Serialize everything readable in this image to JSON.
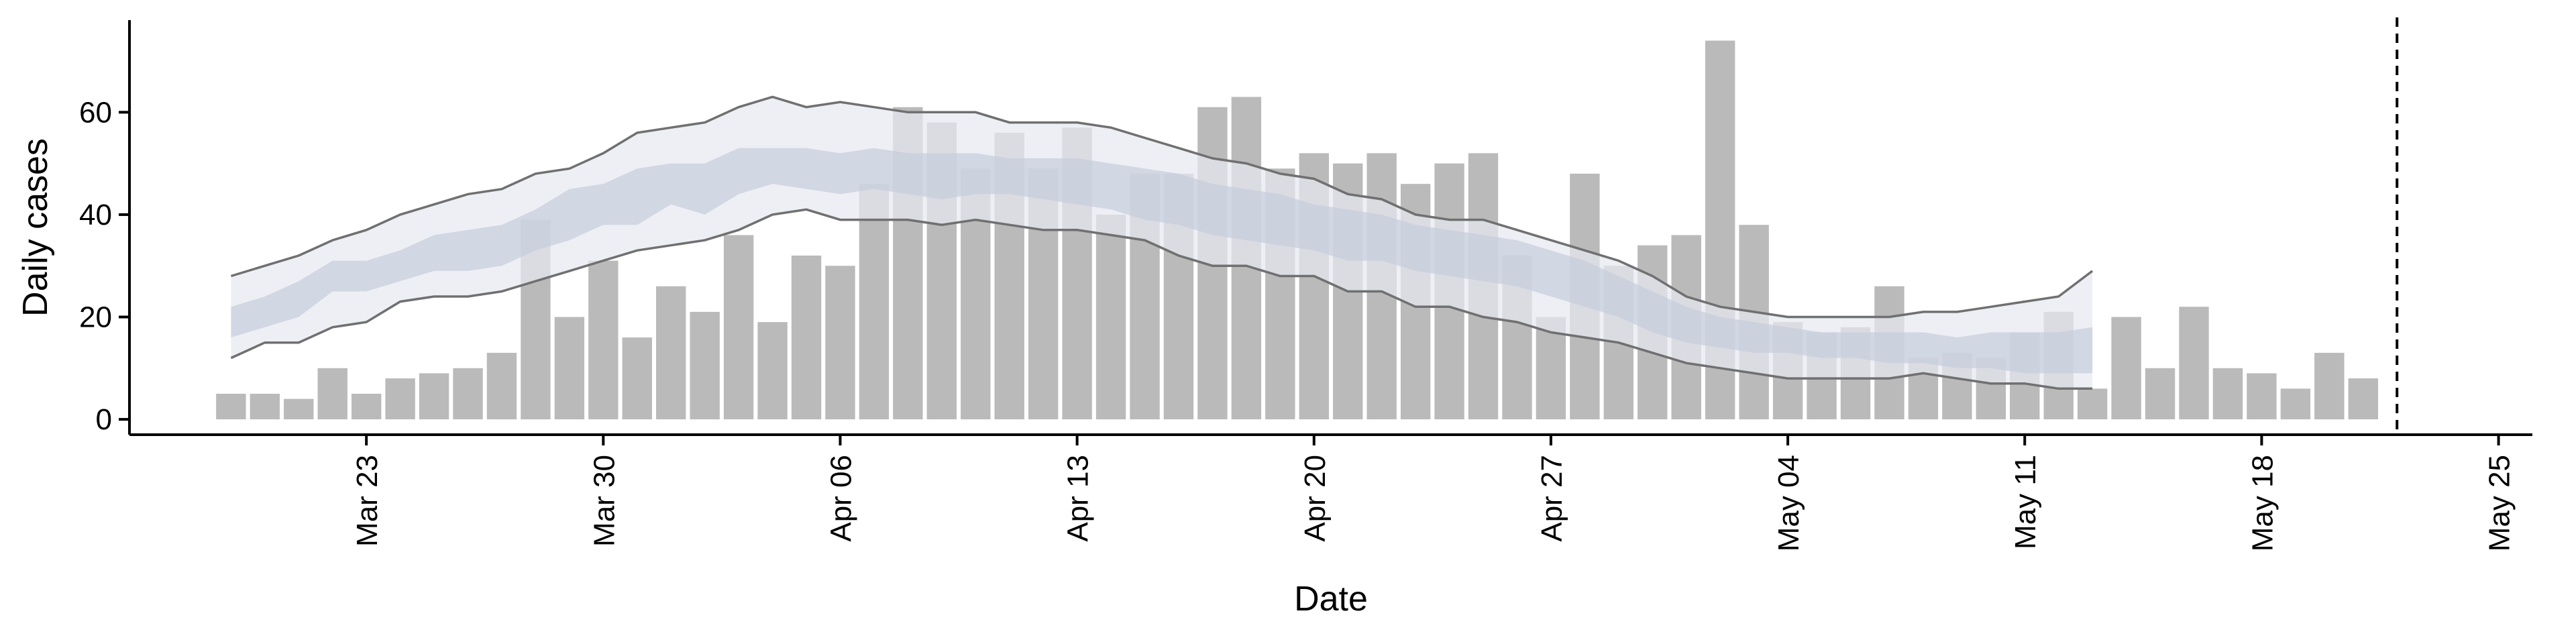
{
  "chart_data": {
    "type": "bar",
    "xlabel": "Date",
    "ylabel": "Daily cases",
    "x_start": "2020-03-19",
    "x_range": [
      "2020-03-16",
      "2020-05-26"
    ],
    "ylim": [
      -3,
      78
    ],
    "grid": false,
    "x_tick_labels": [
      "Mar 23",
      "Mar 30",
      "Apr 06",
      "Apr 13",
      "Apr 20",
      "Apr 27",
      "May 04",
      "May 11",
      "May 18",
      "May 25"
    ],
    "x_tick_dates": [
      "2020-03-23",
      "2020-03-30",
      "2020-04-06",
      "2020-04-13",
      "2020-04-20",
      "2020-04-27",
      "2020-05-04",
      "2020-05-11",
      "2020-05-18",
      "2020-05-25"
    ],
    "y_ticks": [
      0,
      20,
      40,
      60
    ],
    "vline_date": "2020-05-22",
    "series": [
      {
        "type": "bar",
        "values": [
          5,
          5,
          4,
          10,
          5,
          8,
          9,
          10,
          13,
          39,
          20,
          31,
          16,
          26,
          21,
          36,
          19,
          32,
          30,
          46,
          61,
          58,
          49,
          56,
          49,
          57,
          40,
          48,
          48,
          61,
          63,
          49,
          52,
          50,
          52,
          46,
          50,
          52,
          32,
          20,
          48,
          30,
          34,
          36,
          74,
          38,
          19,
          17,
          18,
          26,
          12,
          13,
          12,
          17,
          21,
          6,
          20,
          10,
          22,
          10,
          9,
          6,
          13,
          8
        ]
      },
      {
        "type": "ribbon",
        "level": "90%",
        "lower": [
          12,
          15,
          15,
          18,
          19,
          23,
          24,
          24,
          25,
          27,
          29,
          31,
          33,
          34,
          35,
          37,
          40,
          41,
          39,
          39,
          39,
          38,
          39,
          38,
          37,
          37,
          36,
          35,
          32,
          30,
          30,
          28,
          28,
          25,
          25,
          22,
          22,
          20,
          19,
          17,
          16,
          15,
          13,
          11,
          10,
          9,
          8,
          8,
          8,
          8,
          9,
          8,
          7,
          7,
          6,
          6
        ],
        "upper": [
          28,
          30,
          32,
          35,
          37,
          40,
          42,
          44,
          45,
          48,
          49,
          52,
          56,
          57,
          58,
          61,
          63,
          61,
          62,
          61,
          60,
          60,
          60,
          58,
          58,
          58,
          57,
          55,
          53,
          51,
          50,
          48,
          47,
          44,
          43,
          40,
          39,
          39,
          37,
          35,
          33,
          31,
          28,
          24,
          22,
          21,
          20,
          20,
          20,
          20,
          21,
          21,
          22,
          23,
          24,
          29
        ]
      },
      {
        "type": "ribbon",
        "level": "50%",
        "lower": [
          16,
          18,
          20,
          25,
          25,
          27,
          29,
          29,
          30,
          33,
          35,
          38,
          38,
          42,
          40,
          44,
          46,
          45,
          44,
          45,
          44,
          43,
          44,
          44,
          43,
          42,
          41,
          39,
          38,
          36,
          35,
          34,
          33,
          31,
          31,
          29,
          28,
          27,
          26,
          24,
          22,
          20,
          17,
          15,
          14,
          13,
          13,
          12,
          12,
          11,
          11,
          10,
          10,
          9,
          9,
          9
        ],
        "upper": [
          22,
          24,
          27,
          31,
          31,
          33,
          36,
          37,
          38,
          41,
          45,
          46,
          49,
          50,
          50,
          53,
          53,
          53,
          52,
          53,
          52,
          52,
          52,
          51,
          51,
          51,
          50,
          49,
          48,
          46,
          45,
          44,
          42,
          41,
          40,
          38,
          37,
          36,
          35,
          33,
          31,
          28,
          25,
          22,
          20,
          19,
          18,
          17,
          17,
          17,
          17,
          16,
          17,
          17,
          17,
          18
        ]
      }
    ]
  },
  "colors": {
    "bars": "#bababa",
    "ribbon_outer": "#e8e9f0",
    "ribbon_inner": "#c6cddd",
    "outer_edge": "#707070",
    "axes": "#000000"
  }
}
